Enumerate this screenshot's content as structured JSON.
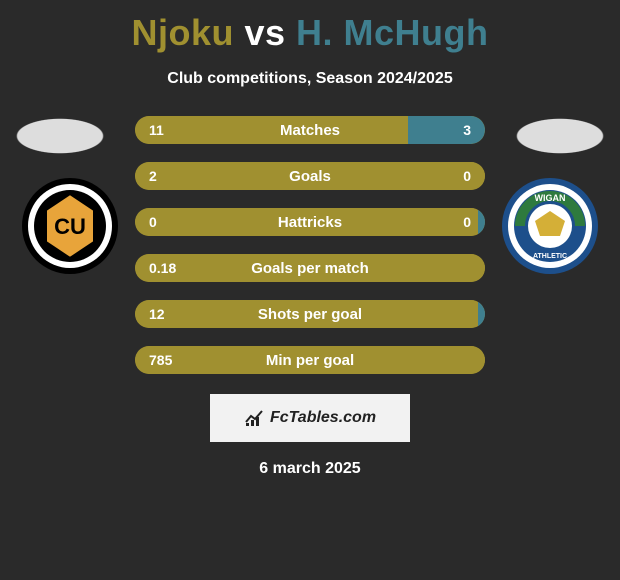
{
  "colors": {
    "left": "#a09030",
    "right": "#3f7f8f",
    "background": "#2a2a2a",
    "white": "#ffffff",
    "badge_bg": "#f2f2f2"
  },
  "title": {
    "player1": "Njoku",
    "vs": "vs",
    "player2": "H. McHugh"
  },
  "subtitle": "Club competitions, Season 2024/2025",
  "player1_crest_label": "CU",
  "player2_crest_label": "WIGAN",
  "player2_crest_sub": "ATHLETIC",
  "stats": [
    {
      "label": "Matches",
      "left_val": "11",
      "right_val": "3",
      "left_pct": 78,
      "right_pct": 22
    },
    {
      "label": "Goals",
      "left_val": "2",
      "right_val": "0",
      "left_pct": 100,
      "right_pct": 0
    },
    {
      "label": "Hattricks",
      "left_val": "0",
      "right_val": "0",
      "left_pct": 98,
      "right_pct": 2
    },
    {
      "label": "Goals per match",
      "left_val": "0.18",
      "right_val": "",
      "left_pct": 100,
      "right_pct": 0
    },
    {
      "label": "Shots per goal",
      "left_val": "12",
      "right_val": "",
      "left_pct": 98,
      "right_pct": 2
    },
    {
      "label": "Min per goal",
      "left_val": "785",
      "right_val": "",
      "left_pct": 100,
      "right_pct": 0
    }
  ],
  "footer": {
    "site": "FcTables.com",
    "date": "6 march 2025"
  },
  "typography": {
    "title_fontsize": 36,
    "subtitle_fontsize": 16,
    "bar_label_fontsize": 15,
    "bar_value_fontsize": 14
  }
}
